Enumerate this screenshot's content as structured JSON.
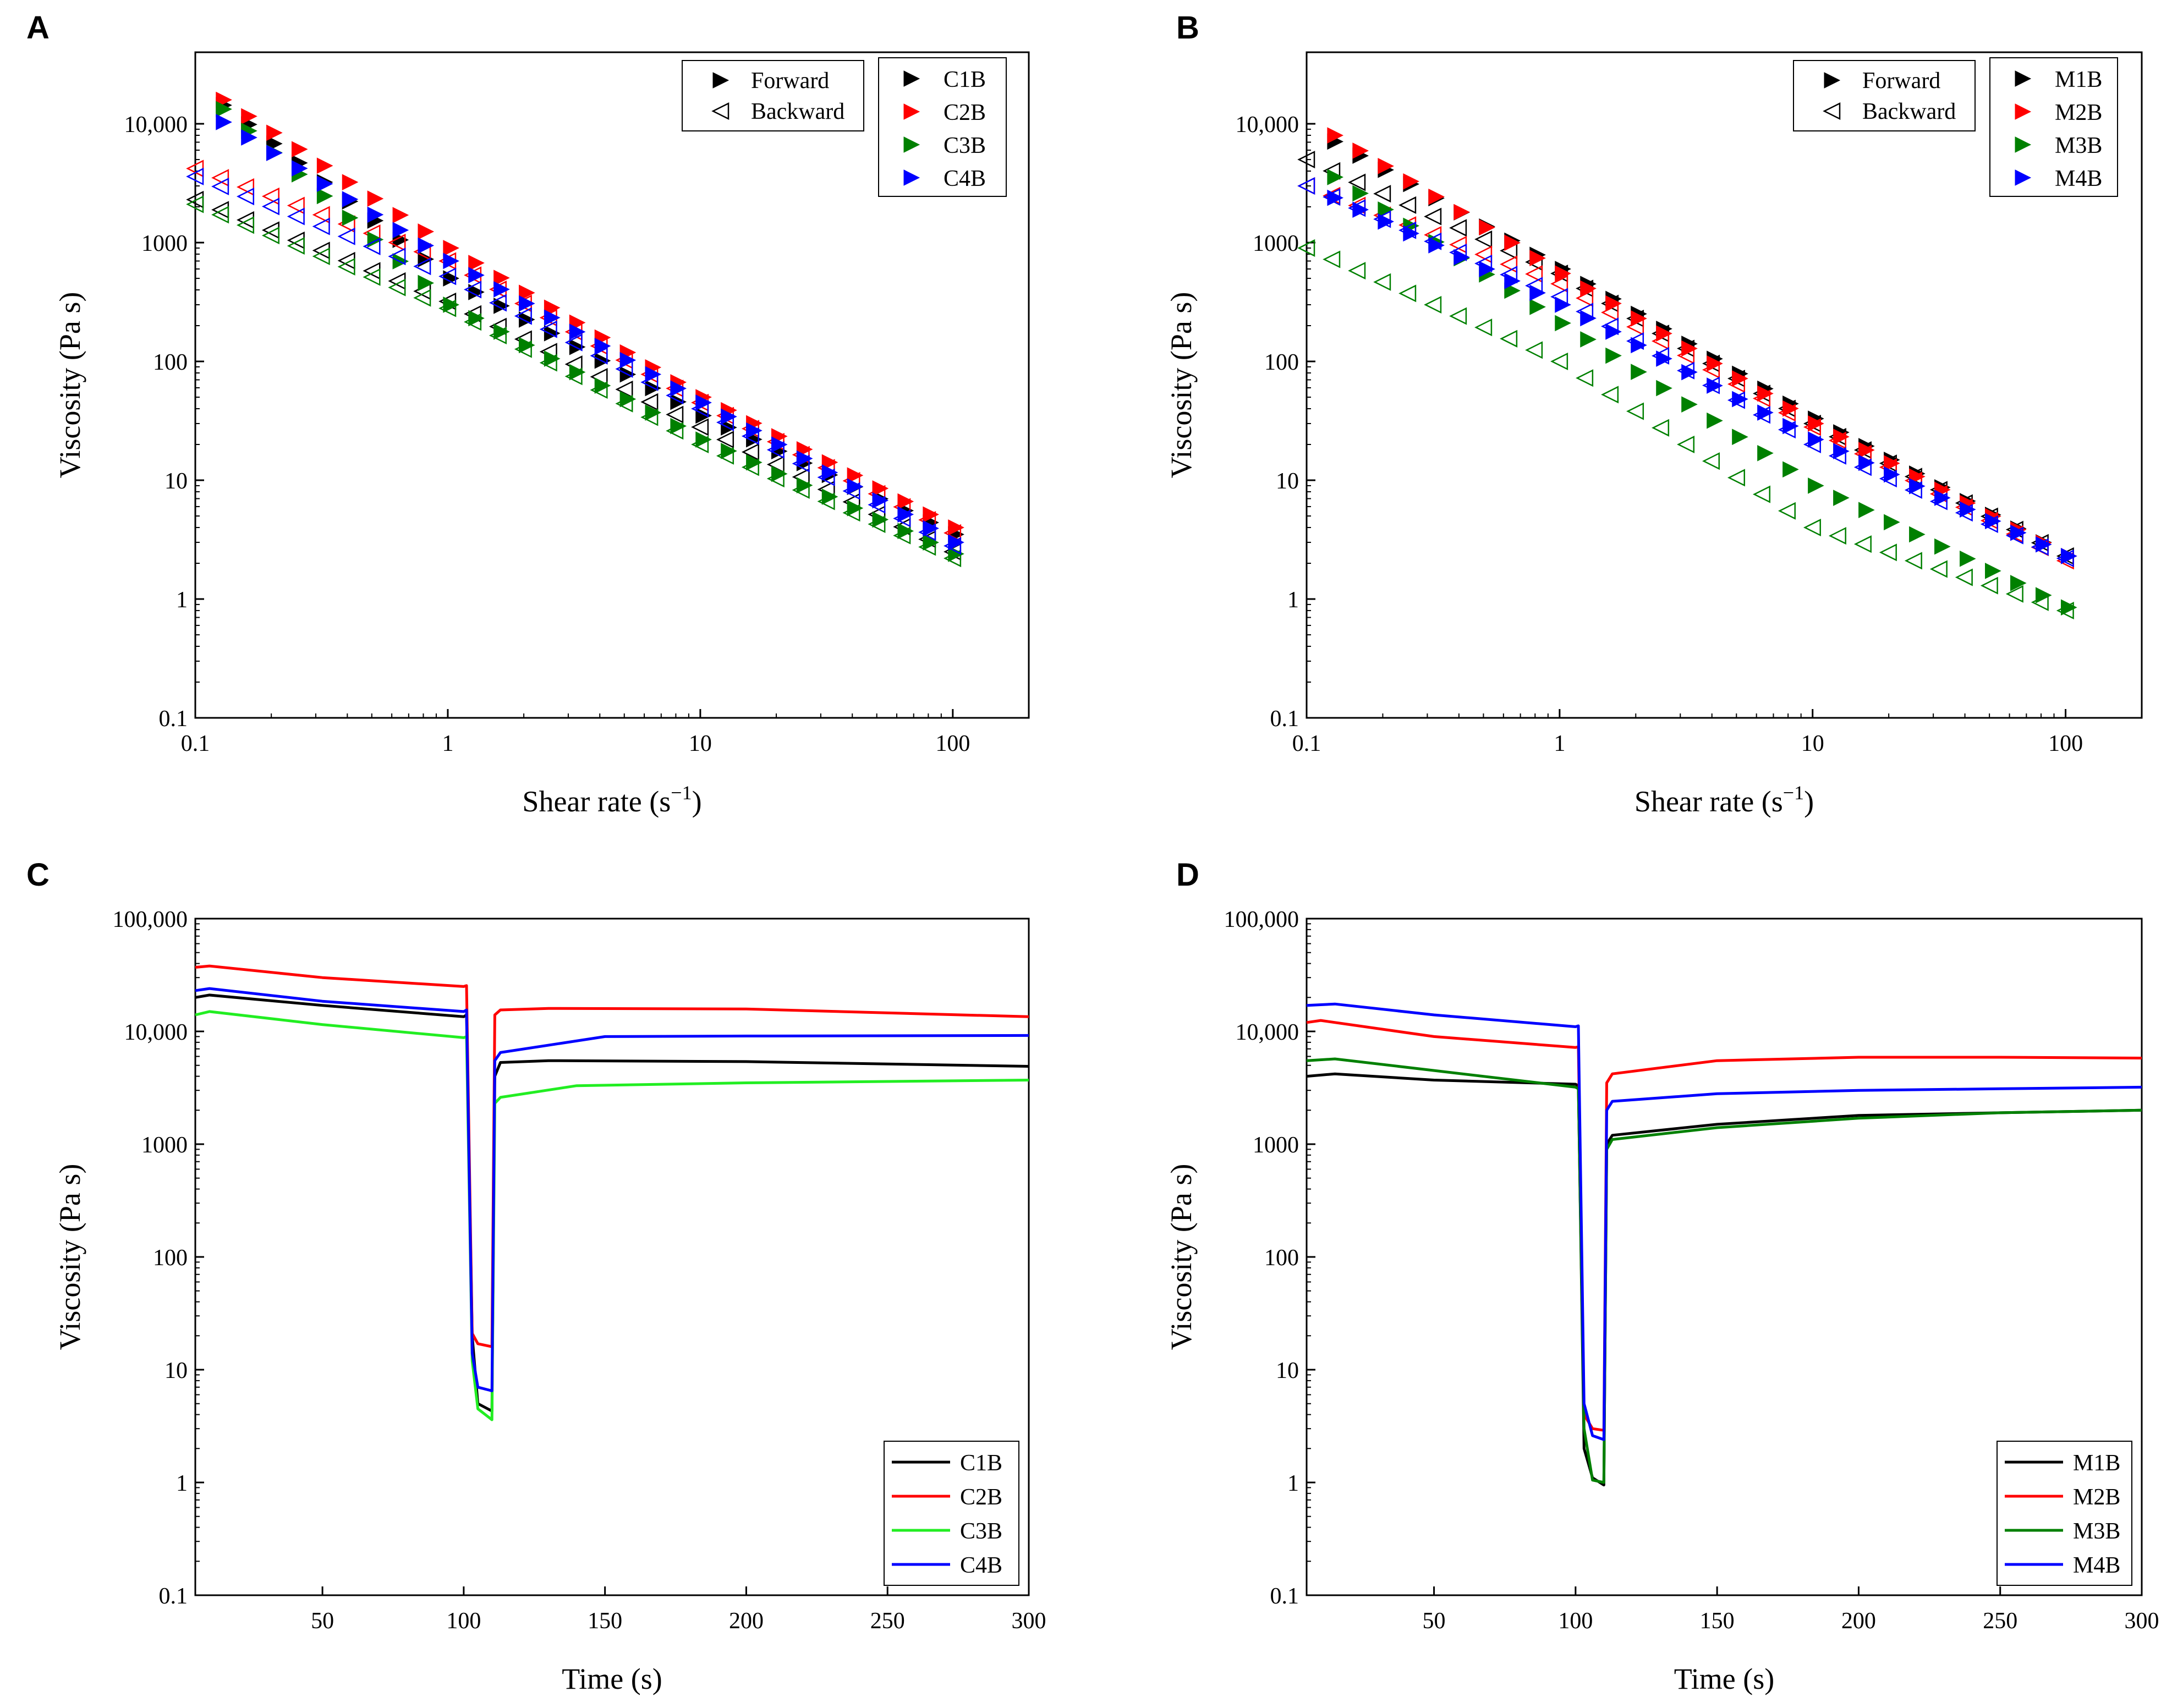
{
  "chart_data": [
    {
      "panel": "A",
      "type": "scatter",
      "xlabel": "Shear rate (s",
      "xlabel_sup": "−1",
      "xlabel_end": ")",
      "ylabel": "Viscosity (Pa s)",
      "xscale": "log",
      "yscale": "log",
      "xlim": [
        0.1,
        200
      ],
      "ylim": [
        0.1,
        40000
      ],
      "x_ticks": [
        0.1,
        1,
        10,
        100
      ],
      "x_tick_labels": [
        "0.1",
        "1",
        "10",
        "100"
      ],
      "y_ticks": [
        0.1,
        1,
        10,
        100,
        1000,
        10000
      ],
      "y_tick_labels": [
        "0.1",
        "1",
        "10",
        "100",
        "1000",
        "10,000"
      ],
      "legend_direction": [
        "Forward",
        "Backward"
      ],
      "series": [
        {
          "name": "C1B",
          "color": "#000000",
          "forward": [
            [
              0.12,
              15500
            ],
            [
              1,
              500
            ],
            [
              10,
              35
            ],
            [
              100,
              3.5
            ]
          ],
          "backward": [
            [
              0.1,
              2300
            ],
            [
              1,
              320
            ],
            [
              10,
              28
            ],
            [
              100,
              2.5
            ]
          ]
        },
        {
          "name": "C2B",
          "color": "#ff0000",
          "forward": [
            [
              0.12,
              17000
            ],
            [
              1,
              900
            ],
            [
              10,
              50
            ],
            [
              100,
              4
            ]
          ],
          "backward": [
            [
              0.1,
              4200
            ],
            [
              1,
              700
            ],
            [
              10,
              45
            ],
            [
              100,
              3.6
            ]
          ]
        },
        {
          "name": "C3B",
          "color": "#008000",
          "forward": [
            [
              0.12,
              14500
            ],
            [
              1,
              300
            ],
            [
              10,
              22
            ],
            [
              100,
              2.4
            ]
          ],
          "backward": [
            [
              0.1,
              2100
            ],
            [
              1,
              280
            ],
            [
              10,
              20
            ],
            [
              100,
              2.2
            ]
          ]
        },
        {
          "name": "C4B",
          "color": "#0000ff",
          "forward": [
            [
              0.12,
              11000
            ],
            [
              1,
              700
            ],
            [
              10,
              45
            ],
            [
              100,
              3
            ]
          ],
          "backward": [
            [
              0.1,
              3600
            ],
            [
              1,
              520
            ],
            [
              10,
              40
            ],
            [
              100,
              2.8
            ]
          ]
        }
      ]
    },
    {
      "panel": "B",
      "type": "scatter",
      "xlabel": "Shear rate (s",
      "xlabel_sup": "−1",
      "xlabel_end": ")",
      "ylabel": "Viscosity (Pa s)",
      "xscale": "log",
      "yscale": "log",
      "xlim": [
        0.1,
        200
      ],
      "ylim": [
        0.1,
        40000
      ],
      "x_ticks": [
        0.1,
        1,
        10,
        100
      ],
      "x_tick_labels": [
        "0.1",
        "1",
        "10",
        "100"
      ],
      "y_ticks": [
        0.1,
        1,
        10,
        100,
        1000,
        10000
      ],
      "y_tick_labels": [
        "0.1",
        "1",
        "10",
        "100",
        "1000",
        "10,000"
      ],
      "legend_direction": [
        "Forward",
        "Backward"
      ],
      "series": [
        {
          "name": "M1B",
          "color": "#000000",
          "forward": [
            [
              0.12,
              7500
            ],
            [
              1,
              600
            ],
            [
              10,
              33
            ],
            [
              100,
              2.3
            ]
          ],
          "backward": [
            [
              0.1,
              5000
            ],
            [
              1,
              550
            ],
            [
              10,
              30
            ],
            [
              100,
              2.3
            ]
          ]
        },
        {
          "name": "M2B",
          "color": "#ff0000",
          "forward": [
            [
              0.12,
              8500
            ],
            [
              1,
              550
            ],
            [
              10,
              30
            ],
            [
              100,
              2.3
            ]
          ],
          "backward": [
            [
              0.1,
              3000
            ],
            [
              1,
              450
            ],
            [
              10,
              28
            ],
            [
              100,
              2.1
            ]
          ]
        },
        {
          "name": "M3B",
          "color": "#008000",
          "forward": [
            [
              0.12,
              3800
            ],
            [
              1,
              210
            ],
            [
              10,
              9
            ],
            [
              100,
              0.85
            ]
          ],
          "backward": [
            [
              0.1,
              900
            ],
            [
              1,
              100
            ],
            [
              10,
              4
            ],
            [
              100,
              0.8
            ]
          ]
        },
        {
          "name": "M4B",
          "color": "#0000ff",
          "forward": [
            [
              0.12,
              2500
            ],
            [
              1,
              300
            ],
            [
              10,
              22
            ],
            [
              100,
              2.3
            ]
          ],
          "backward": [
            [
              0.1,
              3000
            ],
            [
              1,
              350
            ],
            [
              10,
              20
            ],
            [
              100,
              2.2
            ]
          ]
        }
      ]
    },
    {
      "panel": "C",
      "type": "line",
      "xlabel": "Time (s)",
      "ylabel": "Viscosity (Pa s)",
      "xscale": "linear",
      "yscale": "log",
      "xlim": [
        5,
        300
      ],
      "ylim": [
        0.1,
        100000
      ],
      "x_ticks": [
        50,
        100,
        150,
        200,
        250,
        300
      ],
      "x_tick_labels": [
        "50",
        "100",
        "150",
        "200",
        "250",
        "300"
      ],
      "y_ticks": [
        0.1,
        1,
        10,
        100,
        1000,
        10000,
        100000
      ],
      "y_tick_labels": [
        "0.1",
        "1",
        "10",
        "100",
        "1000",
        "10,000",
        "100,000"
      ],
      "series": [
        {
          "name": "C1B",
          "color": "#000000",
          "x": [
            5,
            10,
            50,
            100,
            101,
            103,
            105,
            110,
            111,
            113,
            130,
            200,
            300
          ],
          "y": [
            20000,
            21000,
            17000,
            13500,
            14000,
            20,
            5,
            4.3,
            4000,
            5300,
            5500,
            5400,
            4900
          ]
        },
        {
          "name": "C2B",
          "color": "#ff0000",
          "x": [
            5,
            10,
            50,
            100,
            101,
            103,
            105,
            110,
            111,
            113,
            130,
            200,
            300
          ],
          "y": [
            37000,
            38000,
            30000,
            25000,
            25500,
            21,
            17,
            16,
            14000,
            15500,
            16000,
            15800,
            13500
          ]
        },
        {
          "name": "C3B",
          "color": "#22ee22",
          "x": [
            5,
            10,
            50,
            100,
            101,
            103,
            105,
            110,
            111,
            113,
            140,
            200,
            300
          ],
          "y": [
            14000,
            15000,
            11500,
            8800,
            9000,
            12,
            4.5,
            3.6,
            2300,
            2600,
            3300,
            3500,
            3700
          ]
        },
        {
          "name": "C4B",
          "color": "#0000ff",
          "x": [
            5,
            10,
            50,
            100,
            101,
            103,
            105,
            110,
            111,
            113,
            150,
            200,
            300
          ],
          "y": [
            23000,
            24000,
            18500,
            15000,
            15500,
            14,
            7,
            6.5,
            5500,
            6500,
            9000,
            9100,
            9200
          ]
        }
      ]
    },
    {
      "panel": "D",
      "type": "line",
      "xlabel": "Time (s)",
      "ylabel": "Viscosity (Pa s)",
      "xscale": "linear",
      "yscale": "log",
      "xlim": [
        5,
        300
      ],
      "ylim": [
        0.1,
        100000
      ],
      "x_ticks": [
        50,
        100,
        150,
        200,
        250,
        300
      ],
      "x_tick_labels": [
        "50",
        "100",
        "150",
        "200",
        "250",
        "300"
      ],
      "y_ticks": [
        0.1,
        1,
        10,
        100,
        1000,
        10000,
        100000
      ],
      "y_tick_labels": [
        "0.1",
        "1",
        "10",
        "100",
        "1000",
        "10,000",
        "100,000"
      ],
      "series": [
        {
          "name": "M1B",
          "color": "#000000",
          "x": [
            5,
            15,
            50,
            100,
            101,
            103,
            106,
            110,
            111,
            113,
            150,
            200,
            250,
            300
          ],
          "y": [
            4000,
            4200,
            3700,
            3400,
            3300,
            2,
            1.1,
            0.95,
            1000,
            1200,
            1500,
            1800,
            1900,
            2000
          ]
        },
        {
          "name": "M2B",
          "color": "#ff0000",
          "x": [
            5,
            10,
            50,
            100,
            101,
            103,
            106,
            110,
            111,
            113,
            150,
            200,
            250,
            300
          ],
          "y": [
            12000,
            12500,
            9000,
            7200,
            7300,
            4,
            3,
            2.9,
            3500,
            4200,
            5500,
            5900,
            5900,
            5800
          ]
        },
        {
          "name": "M3B",
          "color": "#008000",
          "x": [
            5,
            15,
            50,
            100,
            101,
            103,
            106,
            110,
            111,
            113,
            150,
            200,
            250,
            300
          ],
          "y": [
            5500,
            5700,
            4500,
            3200,
            3100,
            3,
            1.05,
            1.0,
            900,
            1100,
            1400,
            1700,
            1900,
            2000
          ]
        },
        {
          "name": "M4B",
          "color": "#0000ff",
          "x": [
            5,
            15,
            50,
            100,
            101,
            103,
            106,
            110,
            111,
            113,
            150,
            200,
            250,
            300
          ],
          "y": [
            17000,
            17500,
            14000,
            11000,
            11200,
            5,
            2.6,
            2.4,
            2000,
            2400,
            2800,
            3000,
            3100,
            3200
          ]
        }
      ]
    }
  ]
}
